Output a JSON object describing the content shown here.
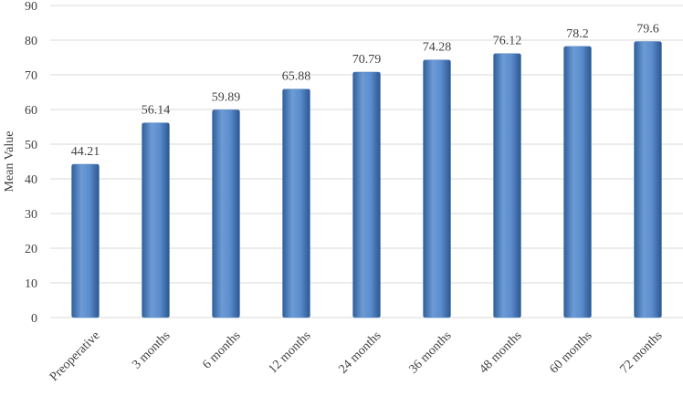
{
  "chart_data": {
    "type": "bar",
    "y_label": "Mean Value",
    "categories": [
      "Preoperative",
      "3 months",
      "6 months",
      "12 months",
      "24 months",
      "36 months",
      "48 months",
      "60 months",
      "72 months"
    ],
    "values": [
      44.21,
      56.14,
      59.89,
      65.88,
      70.79,
      74.28,
      76.12,
      78.2,
      79.6
    ],
    "color": "#4f81bd",
    "ylim": [
      0,
      90
    ],
    "yticks": [
      0,
      10,
      20,
      30,
      40,
      50,
      60,
      70,
      80,
      90
    ],
    "grid": true
  }
}
